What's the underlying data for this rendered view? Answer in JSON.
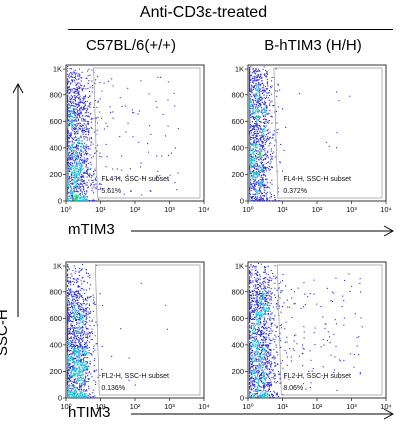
{
  "title": "Anti-CD3ε-treated",
  "columns": [
    "C57BL/6(+/+)",
    "B-hTIM3 (H/H)"
  ],
  "row_labels": [
    "mTIM3",
    "hTIM3"
  ],
  "y_axis_label": "SSC-H",
  "chart_data": [
    {
      "type": "scatter",
      "row": "mTIM3",
      "column": "C57BL/6(+/+)",
      "subset_label": "FL4-H, SSC-H subset",
      "percentage": "5.61%",
      "percent_value": 5.61,
      "xscale": "log",
      "xticks": [
        "10⁰",
        "10¹",
        "10²",
        "10³",
        "10⁴"
      ],
      "yticks": [
        "0",
        "200",
        "400",
        "600",
        "800",
        "1K"
      ],
      "xlim": [
        0,
        4
      ],
      "ylim": [
        0,
        1024
      ],
      "gate_x": 0.8,
      "main_population": {
        "x_center": 0.25,
        "x_spread": 0.27,
        "y_center": 230,
        "y_spread": 170,
        "upper_cluster_y": 680
      },
      "gated_density": "medium"
    },
    {
      "type": "scatter",
      "row": "mTIM3",
      "column": "B-hTIM3 (H/H)",
      "subset_label": "FL4-H, SSC-H subset",
      "percentage": "0.372%",
      "percent_value": 0.372,
      "xscale": "log",
      "xticks": [
        "10⁰",
        "10¹",
        "10²",
        "10³",
        "10⁴"
      ],
      "yticks": [
        "0",
        "200",
        "400",
        "600",
        "800",
        "1K"
      ],
      "xlim": [
        0,
        4
      ],
      "ylim": [
        0,
        1024
      ],
      "gate_x": 0.75,
      "main_population": {
        "x_center": 0.2,
        "x_spread": 0.25,
        "y_center": 300,
        "y_spread": 200,
        "upper_cluster_y": 750
      },
      "gated_density": "sparse"
    },
    {
      "type": "scatter",
      "row": "hTIM3",
      "column": "C57BL/6(+/+)",
      "subset_label": "FL2-H, SSC-H subset",
      "percentage": "0.136%",
      "percent_value": 0.136,
      "xscale": "log",
      "xticks": [
        "10⁰",
        "10¹",
        "10²",
        "10³",
        "10⁴"
      ],
      "yticks": [
        "0",
        "200",
        "400",
        "600",
        "800",
        "1K"
      ],
      "xlim": [
        0,
        4
      ],
      "ylim": [
        0,
        1024
      ],
      "gate_x": 0.85,
      "main_population": {
        "x_center": 0.28,
        "x_spread": 0.25,
        "y_center": 220,
        "y_spread": 170,
        "upper_cluster_y": 650
      },
      "gated_density": "sparse"
    },
    {
      "type": "scatter",
      "row": "hTIM3",
      "column": "B-hTIM3 (H/H)",
      "subset_label": "FL2-H, SSC-H subset",
      "percentage": "8.06%",
      "percent_value": 8.06,
      "xscale": "log",
      "xticks": [
        "10⁰",
        "10¹",
        "10²",
        "10³",
        "10⁴"
      ],
      "yticks": [
        "0",
        "200",
        "400",
        "600",
        "800",
        "1K"
      ],
      "xlim": [
        0,
        4
      ],
      "ylim": [
        0,
        1024
      ],
      "gate_x": 0.85,
      "main_population": {
        "x_center": 0.32,
        "x_spread": 0.27,
        "y_center": 260,
        "y_spread": 190,
        "upper_cluster_y": 700
      },
      "gated_density": "dense"
    }
  ],
  "colors": {
    "sparse": "#2b2bd9",
    "mid": "#16b9d6",
    "dense": "#12d64a",
    "core": "#f0e21a"
  }
}
